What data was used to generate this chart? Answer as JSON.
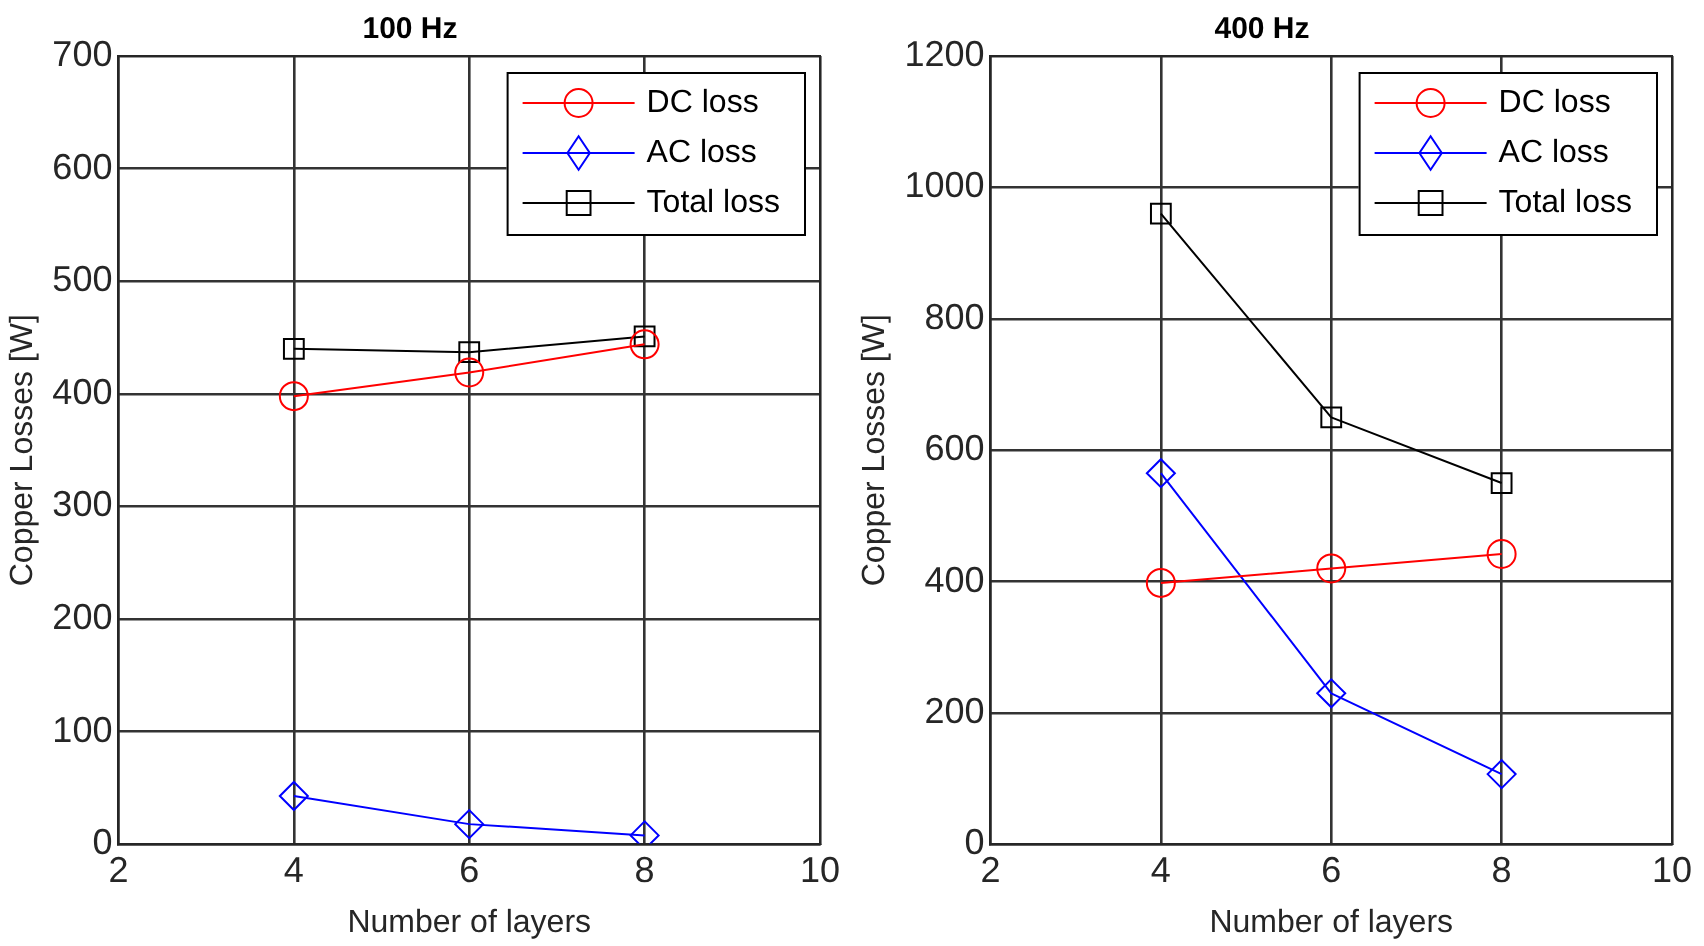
{
  "chart_data": [
    {
      "type": "line",
      "title": "100 Hz",
      "xlabel": "Number of layers",
      "ylabel": "Copper Losses [W]",
      "x": [
        4,
        6,
        8
      ],
      "xlim": [
        2,
        10
      ],
      "xticks": [
        2,
        4,
        6,
        8,
        10
      ],
      "ylim": [
        0,
        700
      ],
      "yticks": [
        0,
        100,
        200,
        300,
        400,
        500,
        600,
        700
      ],
      "grid": true,
      "legend": "top right",
      "series": [
        {
          "name": "DC loss",
          "color": "#ff0000",
          "marker": "circle",
          "values": [
            398,
            419,
            444
          ]
        },
        {
          "name": "AC loss",
          "color": "#0000ff",
          "marker": "diamond",
          "values": [
            43,
            18,
            8
          ]
        },
        {
          "name": "Total loss",
          "color": "#000000",
          "marker": "square",
          "values": [
            440,
            437,
            451
          ]
        }
      ]
    },
    {
      "type": "line",
      "title": "400 Hz",
      "xlabel": "Number of layers",
      "ylabel": "Copper Losses [W]",
      "x": [
        4,
        6,
        8
      ],
      "xlim": [
        2,
        10
      ],
      "xticks": [
        2,
        4,
        6,
        8,
        10
      ],
      "ylim": [
        0,
        1200
      ],
      "yticks": [
        0,
        200,
        400,
        600,
        800,
        1000,
        1200
      ],
      "grid": true,
      "legend": "top right",
      "series": [
        {
          "name": "DC loss",
          "color": "#ff0000",
          "marker": "circle",
          "values": [
            398,
            420,
            442
          ]
        },
        {
          "name": "AC loss",
          "color": "#0000ff",
          "marker": "diamond",
          "values": [
            565,
            230,
            107
          ]
        },
        {
          "name": "Total loss",
          "color": "#000000",
          "marker": "square",
          "values": [
            960,
            650,
            550
          ]
        }
      ]
    }
  ]
}
